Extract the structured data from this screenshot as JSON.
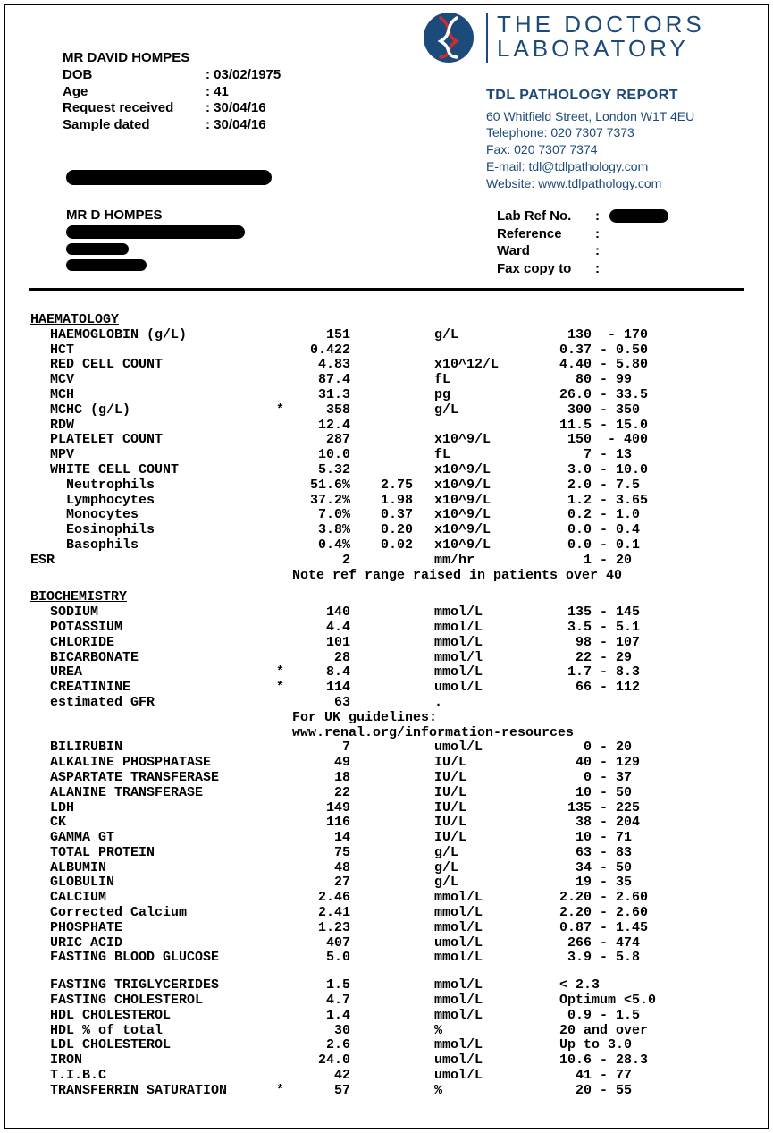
{
  "colors": {
    "brand": "#1c4a7a",
    "text": "#000000",
    "bg": "#ffffff"
  },
  "logo": {
    "line1": "THE DOCTORS",
    "line2": "LABORATORY"
  },
  "patient": {
    "name": "MR DAVID HOMPES",
    "dob_label": "DOB",
    "dob": "03/02/1975",
    "age_label": "Age",
    "age": "41",
    "rr_label": "Request received",
    "rr": "30/04/16",
    "sd_label": "Sample dated",
    "sd": "30/04/16",
    "name2": "MR D HOMPES"
  },
  "address": {
    "title": "TDL PATHOLOGY REPORT",
    "street": "60 Whitfield Street, London W1T 4EU",
    "tel": "Telephone: 020 7307 7373",
    "fax": "Fax: 020 7307 7374",
    "email": "E-mail: tdl@tdlpathology.com",
    "web": "Website: www.tdlpathology.com"
  },
  "labref": {
    "ref_no_label": "Lab Ref No.",
    "reference_label": "Reference",
    "ward_label": "Ward",
    "fax_label": "Fax copy to"
  },
  "sections": [
    {
      "title": "HAEMATOLOGY",
      "rows": [
        {
          "name": "HAEMOGLOBIN (g/L)",
          "flag": "",
          "val": "151",
          "val2": "",
          "unit": "g/L",
          "range": " 130  - 170"
        },
        {
          "name": "HCT",
          "flag": "",
          "val": "0.422",
          "val2": "",
          "unit": "",
          "range": "0.37 - 0.50"
        },
        {
          "name": "RED CELL COUNT",
          "flag": "",
          "val": "4.83",
          "val2": "",
          "unit": "x10^12/L",
          "range": "4.40 - 5.80"
        },
        {
          "name": "MCV",
          "flag": "",
          "val": "87.4",
          "val2": "",
          "unit": "fL",
          "range": "  80 - 99"
        },
        {
          "name": "MCH",
          "flag": "",
          "val": "31.3",
          "val2": "",
          "unit": "pg",
          "range": "26.0 - 33.5"
        },
        {
          "name": "MCHC (g/L)",
          "flag": "*",
          "val": "358",
          "val2": "",
          "unit": "g/L",
          "range": " 300 - 350"
        },
        {
          "name": "RDW",
          "flag": "",
          "val": "12.4",
          "val2": "",
          "unit": "",
          "range": "11.5 - 15.0"
        },
        {
          "name": "PLATELET COUNT",
          "flag": "",
          "val": "287",
          "val2": "",
          "unit": "x10^9/L",
          "range": " 150  - 400"
        },
        {
          "name": "MPV",
          "flag": "",
          "val": "10.0",
          "val2": "",
          "unit": "fL",
          "range": "   7 - 13"
        },
        {
          "name": "WHITE CELL COUNT",
          "flag": "",
          "val": "5.32",
          "val2": "",
          "unit": "x10^9/L",
          "range": " 3.0 - 10.0"
        },
        {
          "name": "Neutrophils",
          "indent": true,
          "flag": "",
          "val": "51.6%",
          "val2": "2.75",
          "unit": "x10^9/L",
          "range": " 2.0 - 7.5"
        },
        {
          "name": "Lymphocytes",
          "indent": true,
          "flag": "",
          "val": "37.2%",
          "val2": "1.98",
          "unit": "x10^9/L",
          "range": " 1.2 - 3.65"
        },
        {
          "name": "Monocytes",
          "indent": true,
          "flag": "",
          "val": "7.0%",
          "val2": "0.37",
          "unit": "x10^9/L",
          "range": " 0.2 - 1.0"
        },
        {
          "name": "Eosinophils",
          "indent": true,
          "flag": "",
          "val": "3.8%",
          "val2": "0.20",
          "unit": "x10^9/L",
          "range": " 0.0 - 0.4"
        },
        {
          "name": "Basophils",
          "indent": true,
          "flag": "",
          "val": "0.4%",
          "val2": "0.02",
          "unit": "x10^9/L",
          "range": " 0.0 - 0.1"
        },
        {
          "name": "ESR",
          "noindentcol": true,
          "flag": "",
          "val": "2",
          "val2": "",
          "unit": "mm/hr",
          "range": "   1 - 20"
        }
      ],
      "notes": [
        "Note ref range raised in patients over 40"
      ]
    },
    {
      "title": "BIOCHEMISTRY",
      "rows": [
        {
          "name": "SODIUM",
          "flag": "",
          "val": "140",
          "val2": "",
          "unit": "mmol/L",
          "range": " 135 - 145"
        },
        {
          "name": "POTASSIUM",
          "flag": "",
          "val": "4.4",
          "val2": "",
          "unit": "mmol/L",
          "range": " 3.5 - 5.1"
        },
        {
          "name": "CHLORIDE",
          "flag": "",
          "val": "101",
          "val2": "",
          "unit": "mmol/L",
          "range": "  98 - 107"
        },
        {
          "name": "BICARBONATE",
          "flag": "",
          "val": "28",
          "val2": "",
          "unit": "mmol/l",
          "range": "  22 - 29"
        },
        {
          "name": "UREA",
          "flag": "*",
          "val": "8.4",
          "val2": "",
          "unit": "mmol/L",
          "range": " 1.7 - 8.3"
        },
        {
          "name": "CREATININE",
          "flag": "*",
          "val": "114",
          "val2": "",
          "unit": "umol/L",
          "range": "  66 - 112"
        },
        {
          "name": "estimated GFR",
          "flag": "",
          "val": "63",
          "val2": "",
          "unit": ".",
          "range": ""
        }
      ],
      "notes": [
        "For UK guidelines:",
        "www.renal.org/information-resources"
      ],
      "rows2": [
        {
          "name": "BILIRUBIN",
          "flag": "",
          "val": "7",
          "val2": "",
          "unit": "umol/L",
          "range": "   0 - 20"
        },
        {
          "name": "ALKALINE PHOSPHATASE",
          "flag": "",
          "val": "49",
          "val2": "",
          "unit": "IU/L",
          "range": "  40 - 129"
        },
        {
          "name": "ASPARTATE TRANSFERASE",
          "flag": "",
          "val": "18",
          "val2": "",
          "unit": "IU/L",
          "range": "   0 - 37"
        },
        {
          "name": "ALANINE TRANSFERASE",
          "flag": "",
          "val": "22",
          "val2": "",
          "unit": "IU/L",
          "range": "  10 - 50"
        },
        {
          "name": "LDH",
          "flag": "",
          "val": "149",
          "val2": "",
          "unit": "IU/L",
          "range": " 135 - 225"
        },
        {
          "name": "CK",
          "flag": "",
          "val": "116",
          "val2": "",
          "unit": "IU/L",
          "range": "  38 - 204"
        },
        {
          "name": "GAMMA GT",
          "flag": "",
          "val": "14",
          "val2": "",
          "unit": "IU/L",
          "range": "  10 - 71"
        },
        {
          "name": "TOTAL PROTEIN",
          "flag": "",
          "val": "75",
          "val2": "",
          "unit": "g/L",
          "range": "  63 - 83"
        },
        {
          "name": "ALBUMIN",
          "flag": "",
          "val": "48",
          "val2": "",
          "unit": "g/L",
          "range": "  34 - 50"
        },
        {
          "name": "GLOBULIN",
          "flag": "",
          "val": "27",
          "val2": "",
          "unit": "g/L",
          "range": "  19 - 35"
        },
        {
          "name": "CALCIUM",
          "flag": "",
          "val": "2.46",
          "val2": "",
          "unit": "mmol/L",
          "range": "2.20 - 2.60"
        },
        {
          "name": "Corrected Calcium",
          "flag": "",
          "val": "2.41",
          "val2": "",
          "unit": "mmol/L",
          "range": "2.20 - 2.60"
        },
        {
          "name": "PHOSPHATE",
          "flag": "",
          "val": "1.23",
          "val2": "",
          "unit": "mmol/L",
          "range": "0.87 - 1.45"
        },
        {
          "name": "URIC ACID",
          "flag": "",
          "val": "407",
          "val2": "",
          "unit": "umol/L",
          "range": " 266 - 474"
        },
        {
          "name": "FASTING BLOOD GLUCOSE",
          "flag": "",
          "val": "5.0",
          "val2": "",
          "unit": "mmol/L",
          "range": " 3.9 - 5.8"
        }
      ],
      "spacer_after_rows2": true,
      "rows3": [
        {
          "name": "FASTING TRIGLYCERIDES",
          "flag": "",
          "val": "1.5",
          "val2": "",
          "unit": "mmol/L",
          "range": "< 2.3"
        },
        {
          "name": "FASTING CHOLESTEROL",
          "flag": "",
          "val": "4.7",
          "val2": "",
          "unit": "mmol/L",
          "range": "Optimum <5.0"
        },
        {
          "name": "HDL CHOLESTEROL",
          "flag": "",
          "val": "1.4",
          "val2": "",
          "unit": "mmol/L",
          "range": " 0.9 - 1.5"
        },
        {
          "name": "HDL % of total",
          "flag": "",
          "val": "30",
          "val2": "",
          "unit": "%",
          "range": "20 and over"
        },
        {
          "name": "LDL CHOLESTEROL",
          "flag": "",
          "val": "2.6",
          "val2": "",
          "unit": "mmol/L",
          "range": "Up to 3.0"
        },
        {
          "name": "IRON",
          "flag": "",
          "val": "24.0",
          "val2": "",
          "unit": "umol/L",
          "range": "10.6 - 28.3"
        },
        {
          "name": "T.I.B.C",
          "flag": "",
          "val": "42",
          "val2": "",
          "unit": "umol/L",
          "range": "  41 - 77"
        },
        {
          "name": "TRANSFERRIN SATURATION",
          "flag": "*",
          "val": "57",
          "val2": "",
          "unit": "%",
          "range": "  20 - 55"
        }
      ]
    }
  ]
}
